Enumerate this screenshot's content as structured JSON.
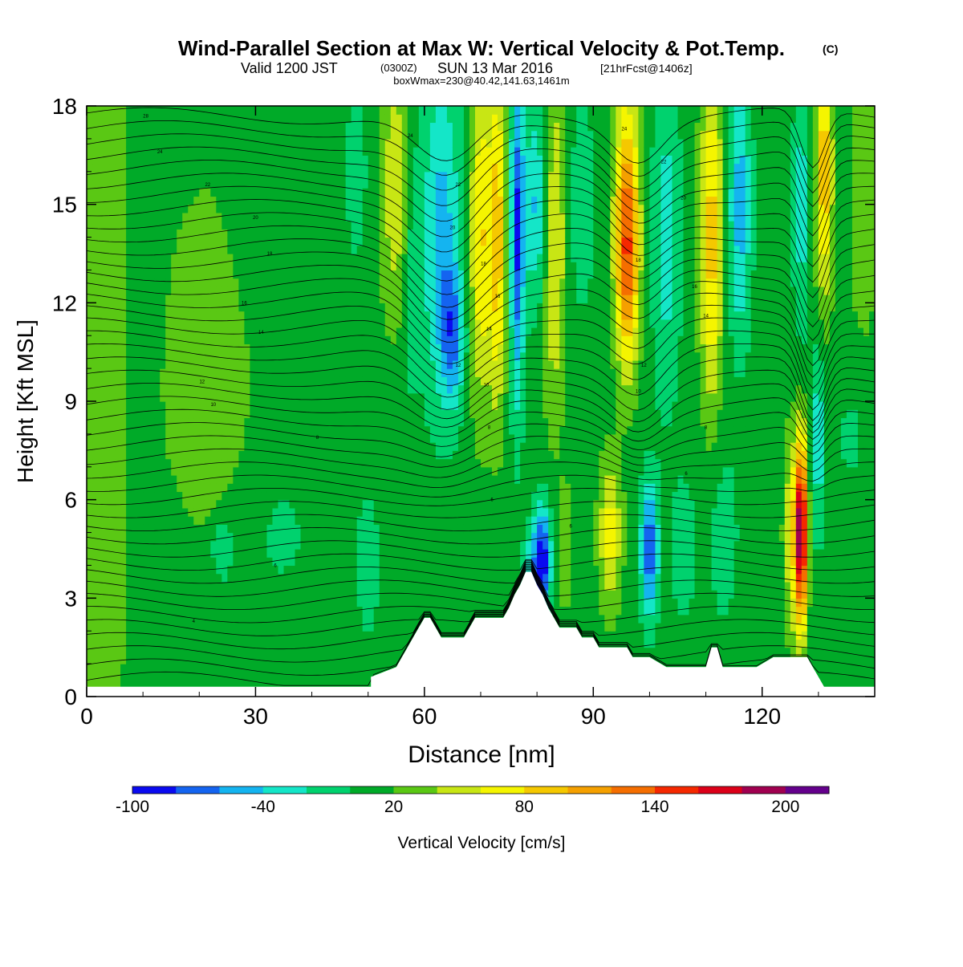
{
  "header": {
    "title": "Wind-Parallel Section at Max W: Vertical Velocity & Pot.Temp.",
    "copyright": "(C)",
    "valid_prefix": "Valid 1200 JST",
    "valid_utc": "(0300Z)",
    "valid_date": "SUN 13 Mar 2016",
    "forecast": "[21hrFcst@1406z]",
    "boxwmax": "boxWmax=230@40.42,141.63,1461m"
  },
  "chart_data": {
    "type": "heatmap",
    "xlabel": "Distance [nm]",
    "ylabel": "Height [Kft MSL]",
    "xlim": [
      0,
      140
    ],
    "ylim": [
      0,
      18
    ],
    "x_ticks": [
      0,
      30,
      60,
      90,
      120
    ],
    "y_ticks": [
      0,
      3,
      6,
      9,
      12,
      15,
      18
    ],
    "colorbar": {
      "label": "Vertical Velocity [cm/s]",
      "tick_labels": [
        -100,
        -40,
        20,
        80,
        140,
        200
      ],
      "levels": [
        -100,
        -80,
        -60,
        -40,
        -20,
        0,
        20,
        40,
        60,
        80,
        100,
        120,
        140,
        160,
        180,
        200,
        220
      ],
      "colors": [
        "#0a0af0",
        "#1464f0",
        "#14b4f0",
        "#14e6c8",
        "#00d26e",
        "#00aa28",
        "#5ac814",
        "#c8e614",
        "#f5f500",
        "#f5c800",
        "#f5a000",
        "#f56e00",
        "#f52800",
        "#dc0019",
        "#a00050",
        "#64008c"
      ]
    },
    "terrain_profile": {
      "x_nm": [
        0,
        50.5,
        50.5,
        55,
        56,
        57,
        58,
        59,
        60,
        61,
        62,
        63,
        64,
        65,
        66,
        67,
        68,
        69,
        70,
        71,
        72,
        73,
        74,
        75,
        76,
        77,
        78,
        79,
        80,
        81,
        82,
        83,
        84,
        85,
        86,
        87,
        88,
        89,
        90,
        91,
        92,
        93,
        94,
        95,
        96,
        97,
        98,
        99,
        100,
        103,
        106,
        109,
        110,
        111,
        112,
        113,
        114,
        116,
        119,
        122,
        125,
        127,
        128,
        129,
        130,
        131,
        140
      ],
      "height_kft": [
        0.3,
        0.3,
        0.6,
        0.9,
        1.2,
        1.5,
        1.8,
        2.1,
        2.4,
        2.4,
        2.1,
        1.8,
        1.8,
        1.8,
        1.8,
        1.8,
        2.1,
        2.4,
        2.4,
        2.4,
        2.4,
        2.4,
        2.4,
        2.7,
        3.1,
        3.4,
        3.8,
        3.8,
        3.4,
        3.1,
        2.7,
        2.4,
        2.1,
        2.1,
        2.1,
        2.1,
        1.8,
        1.8,
        1.8,
        1.5,
        1.5,
        1.5,
        1.5,
        1.5,
        1.5,
        1.2,
        1.2,
        1.2,
        1.2,
        0.9,
        0.9,
        0.9,
        0.9,
        1.5,
        1.5,
        0.9,
        0.9,
        0.9,
        0.9,
        1.2,
        1.2,
        1.2,
        1.2,
        0.9,
        0.6,
        0.3,
        0.3
      ]
    },
    "w_features": [
      {
        "x": 3,
        "z": 9,
        "wx": 4,
        "wz": 18,
        "w": 28
      },
      {
        "x": 22,
        "z": 9,
        "wx": 9,
        "wz": 7,
        "w": 25
      },
      {
        "x": 15,
        "z": 3,
        "wx": 6,
        "wz": 3,
        "w": -12
      },
      {
        "x": 30,
        "z": 16,
        "wx": 5,
        "wz": 5,
        "w": -12
      },
      {
        "x": 32,
        "z": 5,
        "wx": 10,
        "wz": 3,
        "w": -15
      },
      {
        "x": 24,
        "z": 4.5,
        "wx": 2,
        "wz": 1,
        "w": -35
      },
      {
        "x": 48,
        "z": 16,
        "wx": 3,
        "wz": 4,
        "w": -15
      },
      {
        "x": 50,
        "z": 4,
        "wx": 3,
        "wz": 3,
        "w": -15
      },
      {
        "x": 55,
        "z": 15.5,
        "wx": 3,
        "wz": 4,
        "w": 45
      },
      {
        "x": 57.5,
        "z": 14,
        "wx": 1.5,
        "wz": 5,
        "w": -25
      },
      {
        "x": 63,
        "z": 14,
        "wx": 3.5,
        "wz": 5,
        "w": -60
      },
      {
        "x": 65,
        "z": 11,
        "wx": 2,
        "wz": 2,
        "w": -60
      },
      {
        "x": 70,
        "z": 14,
        "wx": 2,
        "wz": 5,
        "w": 70
      },
      {
        "x": 73,
        "z": 14,
        "wx": 1.5,
        "wz": 5,
        "w": 80
      },
      {
        "x": 76.5,
        "z": 14,
        "wx": 1.2,
        "wz": 5,
        "w": -90
      },
      {
        "x": 80,
        "z": 15,
        "wx": 2.5,
        "wz": 3,
        "w": -55
      },
      {
        "x": 83,
        "z": 14,
        "wx": 2,
        "wz": 5,
        "w": 60
      },
      {
        "x": 81,
        "z": 4.2,
        "wx": 1.5,
        "wz": 1.6,
        "w": -105
      },
      {
        "x": 79,
        "z": 3.5,
        "wx": 1.5,
        "wz": 1.5,
        "w": -50
      },
      {
        "x": 85,
        "z": 4.5,
        "wx": 1.5,
        "wz": 2,
        "w": 25
      },
      {
        "x": 88,
        "z": 15,
        "wx": 2,
        "wz": 3,
        "w": -30
      },
      {
        "x": 96,
        "z": 15,
        "wx": 2.2,
        "wz": 4,
        "w": 80
      },
      {
        "x": 96,
        "z": 13,
        "wx": 2,
        "wz": 3,
        "w": 70
      },
      {
        "x": 93,
        "z": 5,
        "wx": 2,
        "wz": 2.2,
        "w": 60
      },
      {
        "x": 100,
        "z": 4.5,
        "wx": 1.5,
        "wz": 2,
        "w": -90
      },
      {
        "x": 103,
        "z": 14,
        "wx": 2.5,
        "wz": 5,
        "w": -40
      },
      {
        "x": 106,
        "z": 4.5,
        "wx": 2,
        "wz": 2,
        "w": -30
      },
      {
        "x": 111,
        "z": 14,
        "wx": 2,
        "wz": 5,
        "w": 80
      },
      {
        "x": 116,
        "z": 15,
        "wx": 2,
        "wz": 4,
        "w": -60
      },
      {
        "x": 113,
        "z": 5,
        "wx": 3,
        "wz": 3,
        "w": -20
      },
      {
        "x": 127,
        "z": 5,
        "wx": 1,
        "wz": 2.8,
        "w": 180
      },
      {
        "x": 125.5,
        "z": 5,
        "wx": 1.5,
        "wz": 3,
        "w": 60
      },
      {
        "x": 130,
        "z": 8,
        "wx": 1.2,
        "wz": 3,
        "w": -45
      },
      {
        "x": 131,
        "z": 16,
        "wx": 1.5,
        "wz": 4,
        "w": 85
      },
      {
        "x": 127,
        "z": 15,
        "wx": 1.5,
        "wz": 4,
        "w": -40
      },
      {
        "x": 136,
        "z": 8,
        "wx": 3,
        "wz": 2,
        "w": -15
      },
      {
        "x": 138,
        "z": 15,
        "wx": 3,
        "wz": 5,
        "w": 20
      }
    ],
    "theta_contour_labels": [
      {
        "x": 10.5,
        "z": 17.7,
        "label": "28"
      },
      {
        "x": 13,
        "z": 16.6,
        "label": "24"
      },
      {
        "x": 21.5,
        "z": 15.6,
        "label": "22"
      },
      {
        "x": 30,
        "z": 14.6,
        "label": "20"
      },
      {
        "x": 32.5,
        "z": 13.5,
        "label": "18"
      },
      {
        "x": 28,
        "z": 12,
        "label": "16"
      },
      {
        "x": 31,
        "z": 11.1,
        "label": "14"
      },
      {
        "x": 20.5,
        "z": 9.6,
        "label": "12"
      },
      {
        "x": 22.5,
        "z": 8.9,
        "label": "10"
      },
      {
        "x": 41,
        "z": 7.9,
        "label": "8"
      },
      {
        "x": 33.5,
        "z": 4,
        "label": "6"
      },
      {
        "x": 19,
        "z": 2.3,
        "label": "4"
      },
      {
        "x": 57.5,
        "z": 17.1,
        "label": "24"
      },
      {
        "x": 66,
        "z": 15.6,
        "label": "22"
      },
      {
        "x": 65,
        "z": 14.3,
        "label": "20"
      },
      {
        "x": 70.5,
        "z": 13.2,
        "label": "18"
      },
      {
        "x": 73,
        "z": 12.2,
        "label": "16"
      },
      {
        "x": 71.5,
        "z": 11.2,
        "label": "14"
      },
      {
        "x": 66,
        "z": 10.1,
        "label": "12"
      },
      {
        "x": 71,
        "z": 9.5,
        "label": "10"
      },
      {
        "x": 71.5,
        "z": 8.2,
        "label": "8"
      },
      {
        "x": 72,
        "z": 6,
        "label": "6"
      },
      {
        "x": 86,
        "z": 5.2,
        "label": "6"
      },
      {
        "x": 95.5,
        "z": 17.3,
        "label": "24"
      },
      {
        "x": 102.5,
        "z": 16.3,
        "label": "22"
      },
      {
        "x": 106,
        "z": 15.2,
        "label": "20"
      },
      {
        "x": 98,
        "z": 13.3,
        "label": "18"
      },
      {
        "x": 108,
        "z": 12.5,
        "label": "16"
      },
      {
        "x": 110,
        "z": 11.6,
        "label": "14"
      },
      {
        "x": 99,
        "z": 10.1,
        "label": "12"
      },
      {
        "x": 98,
        "z": 9.3,
        "label": "10"
      },
      {
        "x": 110,
        "z": 8.2,
        "label": "8"
      },
      {
        "x": 106.5,
        "z": 6.8,
        "label": "6"
      }
    ]
  }
}
